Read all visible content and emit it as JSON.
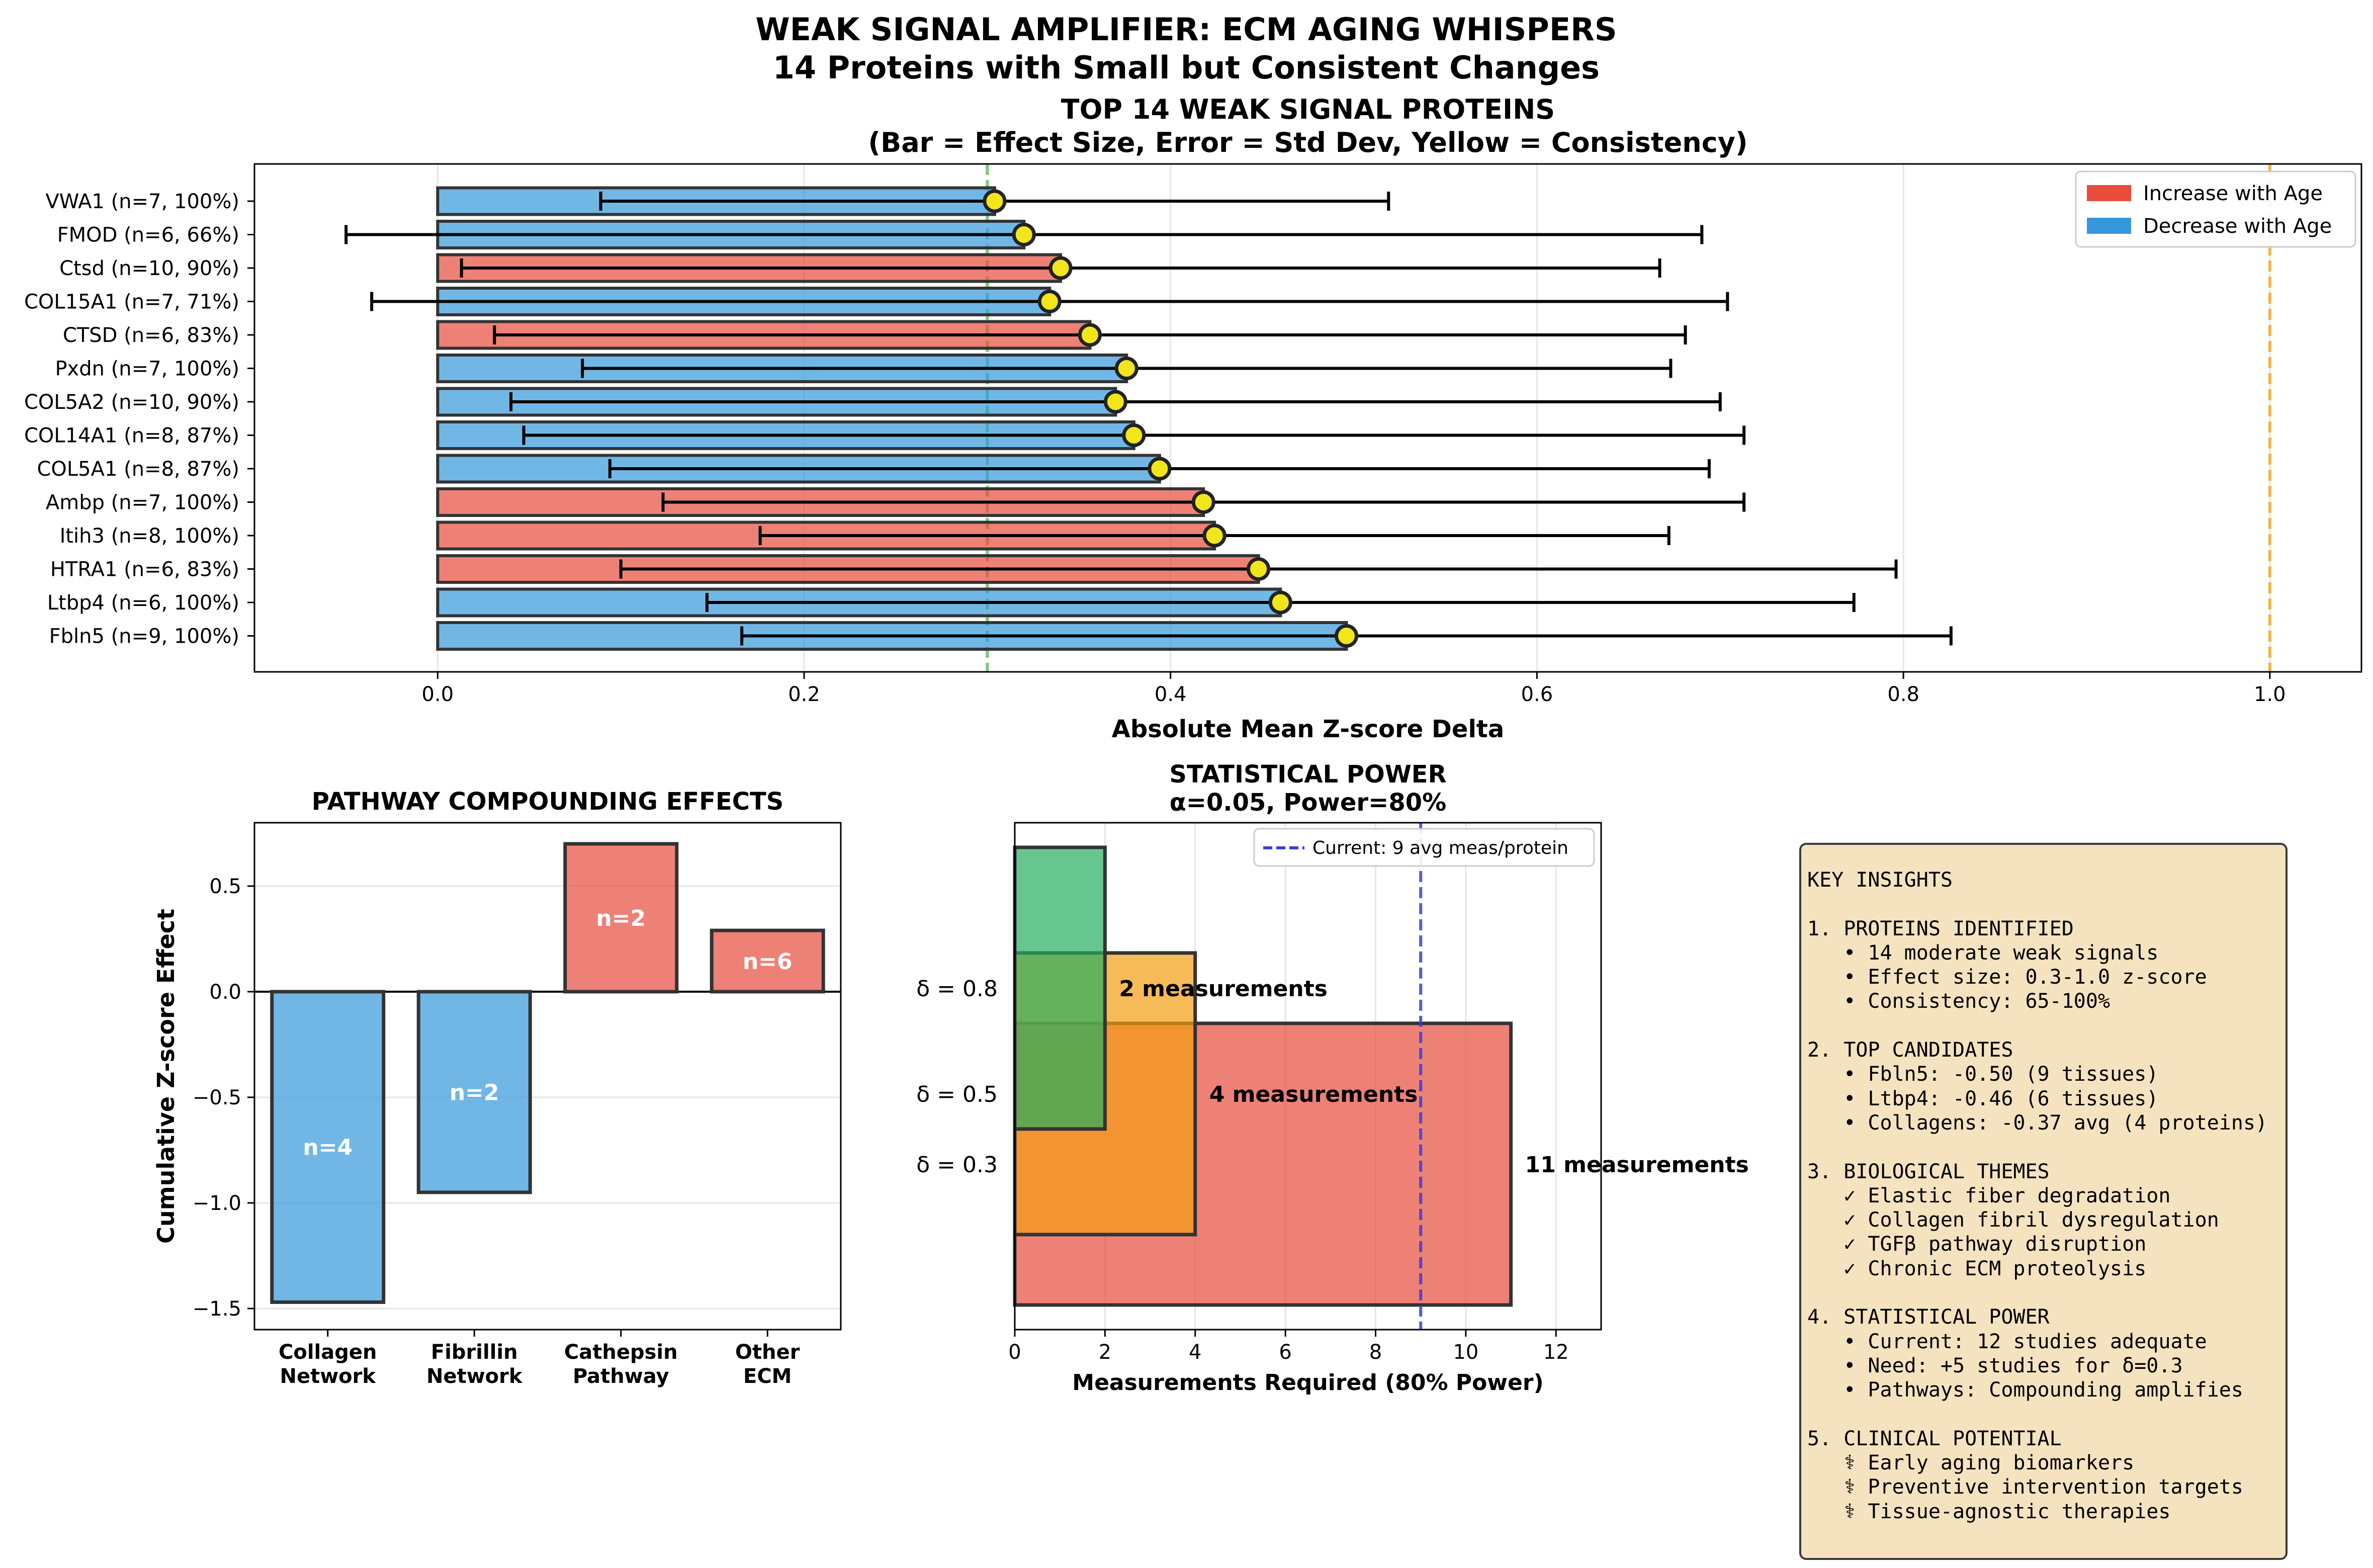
{
  "suptitle": {
    "line1": "WEAK SIGNAL AMPLIFIER: ECM AGING WHISPERS",
    "line2": "14 Proteins with Small but Consistent Changes"
  },
  "colors": {
    "increase": "#e74c3c",
    "decrease": "#3498db",
    "consistency": "#f1e61c",
    "threshold_green": "#5cb85c",
    "threshold_orange": "#f5a623",
    "power_08": "#27ae60",
    "power_05": "#f39c12",
    "power_03": "#e74c3c",
    "current_line": "#3b3bdc",
    "insights_bg": "#f5e3c0"
  },
  "chart_data": [
    {
      "type": "bar",
      "orientation": "horizontal",
      "title": "TOP 14 WEAK SIGNAL PROTEINS",
      "subtitle": "(Bar = Effect Size, Error = Std Dev, Yellow = Consistency)",
      "xlabel": "Absolute Mean Z-score Delta",
      "xlim": [
        -0.1,
        1.05
      ],
      "xticks": [
        "0.0",
        "0.2",
        "0.4",
        "0.6",
        "0.8",
        "1.0"
      ],
      "reference_lines": [
        0.3,
        1.0
      ],
      "grid": "x",
      "legend": {
        "placement": "top-right",
        "entries": [
          "Increase with Age",
          "Decrease with Age"
        ]
      },
      "categories": [
        "VWA1 (n=7, 100%)",
        "FMOD (n=6, 66%)",
        "Ctsd (n=10, 90%)",
        "COL15A1 (n=7, 71%)",
        "CTSD (n=6, 83%)",
        "Pxdn (n=7, 100%)",
        "COL5A2 (n=10, 90%)",
        "COL14A1 (n=8, 87%)",
        "COL5A1 (n=8, 87%)",
        "Ambp (n=7, 100%)",
        "Itih3 (n=8, 100%)",
        "HTRA1 (n=6, 83%)",
        "Ltbp4 (n=6, 100%)",
        "Fbln5 (n=9, 100%)"
      ],
      "values": [
        0.304,
        0.32,
        0.34,
        0.334,
        0.356,
        0.376,
        0.37,
        0.38,
        0.394,
        0.418,
        0.424,
        0.448,
        0.46,
        0.496
      ],
      "error": [
        0.215,
        0.37,
        0.327,
        0.37,
        0.325,
        0.297,
        0.33,
        0.333,
        0.3,
        0.295,
        0.248,
        0.348,
        0.313,
        0.33
      ],
      "direction": [
        "decrease",
        "decrease",
        "increase",
        "decrease",
        "increase",
        "decrease",
        "decrease",
        "decrease",
        "decrease",
        "increase",
        "increase",
        "increase",
        "decrease",
        "decrease"
      ]
    },
    {
      "type": "bar",
      "title": "PATHWAY COMPOUNDING EFFECTS",
      "ylabel": "Cumulative Z-score Effect",
      "ylim": [
        -1.6,
        0.8
      ],
      "yticks": [
        "0.5",
        "0.0",
        "−0.5",
        "−1.0",
        "−1.5"
      ],
      "grid": "y",
      "categories": [
        "Collagen Network",
        "Fibrillin Network",
        "Cathepsin Pathway",
        "Other ECM"
      ],
      "category_lines": [
        [
          "Collagen",
          "Network"
        ],
        [
          "Fibrillin",
          "Network"
        ],
        [
          "Cathepsin",
          "Pathway"
        ],
        [
          "Other",
          "ECM"
        ]
      ],
      "values": [
        -1.47,
        -0.95,
        0.7,
        0.29
      ],
      "labels": [
        "n=4",
        "n=2",
        "n=2",
        "n=6"
      ]
    },
    {
      "type": "bar",
      "title": "STATISTICAL POWER",
      "subtitle": "α=0.05, Power=80%",
      "xlabel": "Measurements Required (80% Power)",
      "xlim": [
        0,
        13
      ],
      "xticks": [
        "0",
        "2",
        "4",
        "6",
        "8",
        "10",
        "12"
      ],
      "grid": "x",
      "categories": [
        "δ = 0.8",
        "δ = 0.5",
        "δ = 0.3"
      ],
      "values": [
        2,
        4,
        11
      ],
      "labels": [
        "2 measurements",
        "4 measurements",
        "11 measurements"
      ],
      "current_line": {
        "x": 9,
        "label": "Current: 9 avg meas/protein"
      }
    }
  ],
  "insights": {
    "lines": [
      "KEY INSIGHTS",
      "",
      "1. PROTEINS IDENTIFIED",
      "   • 14 moderate weak signals",
      "   • Effect size: 0.3-1.0 z-score",
      "   • Consistency: 65-100%",
      "",
      "2. TOP CANDIDATES",
      "   • Fbln5: -0.50 (9 tissues)",
      "   • Ltbp4: -0.46 (6 tissues)",
      "   • Collagens: -0.37 avg (4 proteins)",
      "",
      "3. BIOLOGICAL THEMES",
      "   ✓ Elastic fiber degradation",
      "   ✓ Collagen fibril dysregulation",
      "   ✓ TGFβ pathway disruption",
      "   ✓ Chronic ECM proteolysis",
      "",
      "4. STATISTICAL POWER",
      "   • Current: 12 studies adequate",
      "   • Need: +5 studies for δ=0.3",
      "   • Pathways: Compounding amplifies",
      "",
      "5. CLINICAL POTENTIAL",
      "   ⚕ Early aging biomarkers",
      "   ⚕ Preventive intervention targets",
      "   ⚕ Tissue-agnostic therapies"
    ]
  }
}
